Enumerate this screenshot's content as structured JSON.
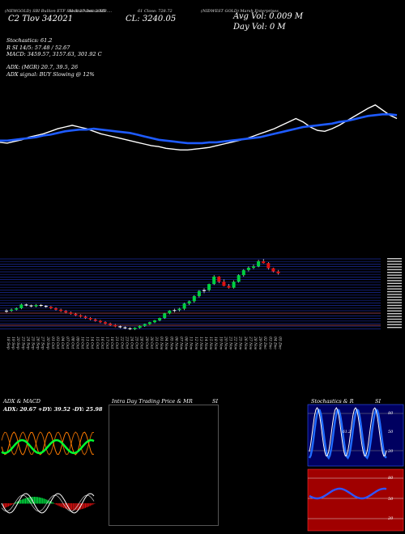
{
  "header": {
    "line1": [
      "(NEWGOLD) SBI Bullion ETF Stock 27 Dec 2025 ....",
      "(NEWGOLD) SBI Bullion ETF Stock 27 Dec 2025 ....",
      "SI-Stockastica MB",
      "61 Close: 728.72",
      "(NIDWEST GOLD) Marsh Enterprises"
    ],
    "left_big": "C2 Tlov    342021",
    "close_big": "CL: 3240.05",
    "avg_vol": "Avg Vol: 0.009 M",
    "day_vol": "Day Vol: 0   M",
    "stochastics": "Stochastics: 61.2",
    "stoch_rsi": "R      SI 14/5: 57.48  / 52.67",
    "macd": "MACD: 3459.57,  3157.63,  301.92  C",
    "adx": "ADX:                         (MGR) 20.7,  39.5,  26",
    "adx_signal": "ADX  signal:                                    BUY Slowing @ 12%"
  },
  "panels": {
    "adx_title": "ADX  & MACD",
    "adx_readout": "ADX: 20.67 +DY: 39.52  -DY: 25.98",
    "intra_title": "Intra  Day Trading Price  & MR",
    "intra_si": "SI",
    "stoch_title": "Stochastics & R",
    "stoch_si": "SI",
    "stoch_ticks": [
      "80",
      "50",
      "20"
    ],
    "rsi_ticks": [
      "80",
      "50",
      "20"
    ],
    "stoch_value": "61.2"
  },
  "chart_data": {
    "type": "candlestick",
    "dates": [
      "18 Sep",
      "19 Sep",
      "20 Sep",
      "23 Sep",
      "24 Sep",
      "25 Sep",
      "26 Sep",
      "27 Sep",
      "30 Sep",
      "01 Oct",
      "03 Oct",
      "04 Oct",
      "07 Oct",
      "08 Oct",
      "09 Oct",
      "10 Oct",
      "11 Oct",
      "14 Oct",
      "15 Oct",
      "16 Oct",
      "17 Oct",
      "18 Oct",
      "21 Oct",
      "22 Oct",
      "23 Oct",
      "24 Oct",
      "25 Oct",
      "28 Oct",
      "29 Oct",
      "30 Oct",
      "31 Oct",
      "01 Nov",
      "04 Nov",
      "05 Nov",
      "06 Nov",
      "07 Nov",
      "08 Nov",
      "11 Nov",
      "12 Nov",
      "13 Nov",
      "14 Nov",
      "15 Nov",
      "18 Nov",
      "19 Nov",
      "20 Nov",
      "21 Nov",
      "22 Nov",
      "25 Nov",
      "26 Nov",
      "27 Nov",
      "28 Nov",
      "29 Nov",
      "02 Dec",
      "03 Dec",
      "04 Dec",
      "05 Dec"
    ],
    "candles": [
      [
        2812,
        2822,
        2806,
        2815
      ],
      [
        2815,
        2825,
        2810,
        2820
      ],
      [
        2820,
        2830,
        2816,
        2826
      ],
      [
        2826,
        2846,
        2822,
        2842
      ],
      [
        2842,
        2846,
        2834,
        2838
      ],
      [
        2838,
        2842,
        2830,
        2834
      ],
      [
        2834,
        2844,
        2830,
        2840
      ],
      [
        2840,
        2844,
        2832,
        2836
      ],
      [
        2836,
        2840,
        2828,
        2832
      ],
      [
        2832,
        2836,
        2822,
        2826
      ],
      [
        2826,
        2830,
        2816,
        2820
      ],
      [
        2820,
        2824,
        2810,
        2814
      ],
      [
        2814,
        2818,
        2804,
        2808
      ],
      [
        2808,
        2812,
        2798,
        2802
      ],
      [
        2802,
        2806,
        2792,
        2796
      ],
      [
        2796,
        2800,
        2786,
        2790
      ],
      [
        2790,
        2794,
        2780,
        2784
      ],
      [
        2784,
        2788,
        2774,
        2778
      ],
      [
        2778,
        2782,
        2768,
        2772
      ],
      [
        2772,
        2776,
        2762,
        2766
      ],
      [
        2766,
        2770,
        2756,
        2760
      ],
      [
        2760,
        2764,
        2750,
        2754
      ],
      [
        2754,
        2758,
        2744,
        2748
      ],
      [
        2748,
        2752,
        2740,
        2744
      ],
      [
        2744,
        2748,
        2736,
        2740
      ],
      [
        2740,
        2744,
        2732,
        2736
      ],
      [
        2736,
        2744,
        2732,
        2742
      ],
      [
        2742,
        2752,
        2738,
        2750
      ],
      [
        2750,
        2760,
        2746,
        2758
      ],
      [
        2758,
        2768,
        2754,
        2766
      ],
      [
        2766,
        2776,
        2762,
        2774
      ],
      [
        2774,
        2786,
        2770,
        2784
      ],
      [
        2784,
        2806,
        2780,
        2804
      ],
      [
        2804,
        2818,
        2800,
        2816
      ],
      [
        2816,
        2824,
        2808,
        2818
      ],
      [
        2818,
        2828,
        2812,
        2824
      ],
      [
        2824,
        2850,
        2818,
        2846
      ],
      [
        2846,
        2860,
        2840,
        2856
      ],
      [
        2856,
        2882,
        2850,
        2878
      ],
      [
        2878,
        2904,
        2872,
        2900
      ],
      [
        2900,
        2912,
        2890,
        2904
      ],
      [
        2904,
        2932,
        2898,
        2930
      ],
      [
        2930,
        2968,
        2926,
        2962
      ],
      [
        2962,
        2964,
        2934,
        2940
      ],
      [
        2940,
        2950,
        2920,
        2922
      ],
      [
        2922,
        2930,
        2910,
        2914
      ],
      [
        2914,
        2946,
        2910,
        2940
      ],
      [
        2940,
        2972,
        2936,
        2968
      ],
      [
        2968,
        2994,
        2962,
        2990
      ],
      [
        2990,
        3006,
        2984,
        3000
      ],
      [
        3000,
        3014,
        2994,
        3006
      ],
      [
        3006,
        3034,
        3002,
        3028
      ],
      [
        3028,
        3038,
        3018,
        3020
      ],
      [
        3020,
        3024,
        2992,
        2998
      ],
      [
        2998,
        3000,
        2980,
        2984
      ],
      [
        2984,
        2990,
        2970,
        2976
      ]
    ],
    "ma_white": [
      42,
      41,
      43,
      45,
      48,
      50,
      52,
      55,
      58,
      60,
      62,
      60,
      58,
      55,
      52,
      50,
      48,
      46,
      44,
      42,
      40,
      38,
      37,
      35,
      34,
      33,
      33,
      34,
      35,
      36,
      38,
      40,
      42,
      44,
      46,
      49,
      52,
      55,
      58,
      62,
      66,
      70,
      66,
      60,
      56,
      55,
      58,
      62,
      67,
      72,
      77,
      82,
      86,
      80,
      74,
      70
    ],
    "ma_blue": [
      44,
      44,
      45,
      46,
      47,
      48,
      50,
      51,
      53,
      55,
      56,
      57,
      57,
      58,
      57,
      56,
      55,
      54,
      53,
      51,
      49,
      47,
      45,
      44,
      43,
      42,
      41,
      41,
      41,
      42,
      42,
      43,
      44,
      45,
      46,
      47,
      48,
      50,
      52,
      54,
      56,
      58,
      60,
      61,
      62,
      63,
      64,
      66,
      67,
      69,
      71,
      73,
      74,
      75,
      75,
      74
    ]
  }
}
